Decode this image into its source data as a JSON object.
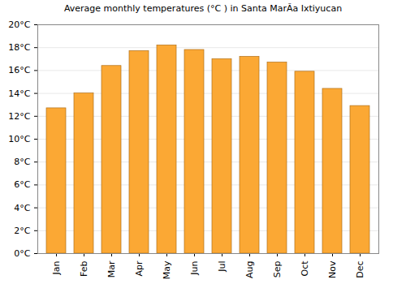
{
  "chart_data": {
    "type": "bar",
    "title": "Average monthly temperatures (°C ) in Santa MarÃa Ixtiyucan",
    "categories": [
      "Jan",
      "Feb",
      "Mar",
      "Apr",
      "May",
      "Jun",
      "Jul",
      "Aug",
      "Sep",
      "Oct",
      "Nov",
      "Dec"
    ],
    "values": [
      12.7,
      14.0,
      16.4,
      17.7,
      18.2,
      17.8,
      17.0,
      17.2,
      16.7,
      15.9,
      14.4,
      12.9
    ],
    "color": "#fba834",
    "ylim": [
      0,
      20
    ],
    "yticks": [
      {
        "value": 0,
        "label": "0°C"
      },
      {
        "value": 2,
        "label": "2°C"
      },
      {
        "value": 4,
        "label": "4°C"
      },
      {
        "value": 6,
        "label": "6°C"
      },
      {
        "value": 8,
        "label": "8°C"
      },
      {
        "value": 10,
        "label": "10°C"
      },
      {
        "value": 12,
        "label": "12°C"
      },
      {
        "value": 14,
        "label": "14°C"
      },
      {
        "value": 16,
        "label": "16°C"
      },
      {
        "value": 18,
        "label": "18°C"
      },
      {
        "value": 20,
        "label": "20°C"
      }
    ],
    "grid": true
  }
}
